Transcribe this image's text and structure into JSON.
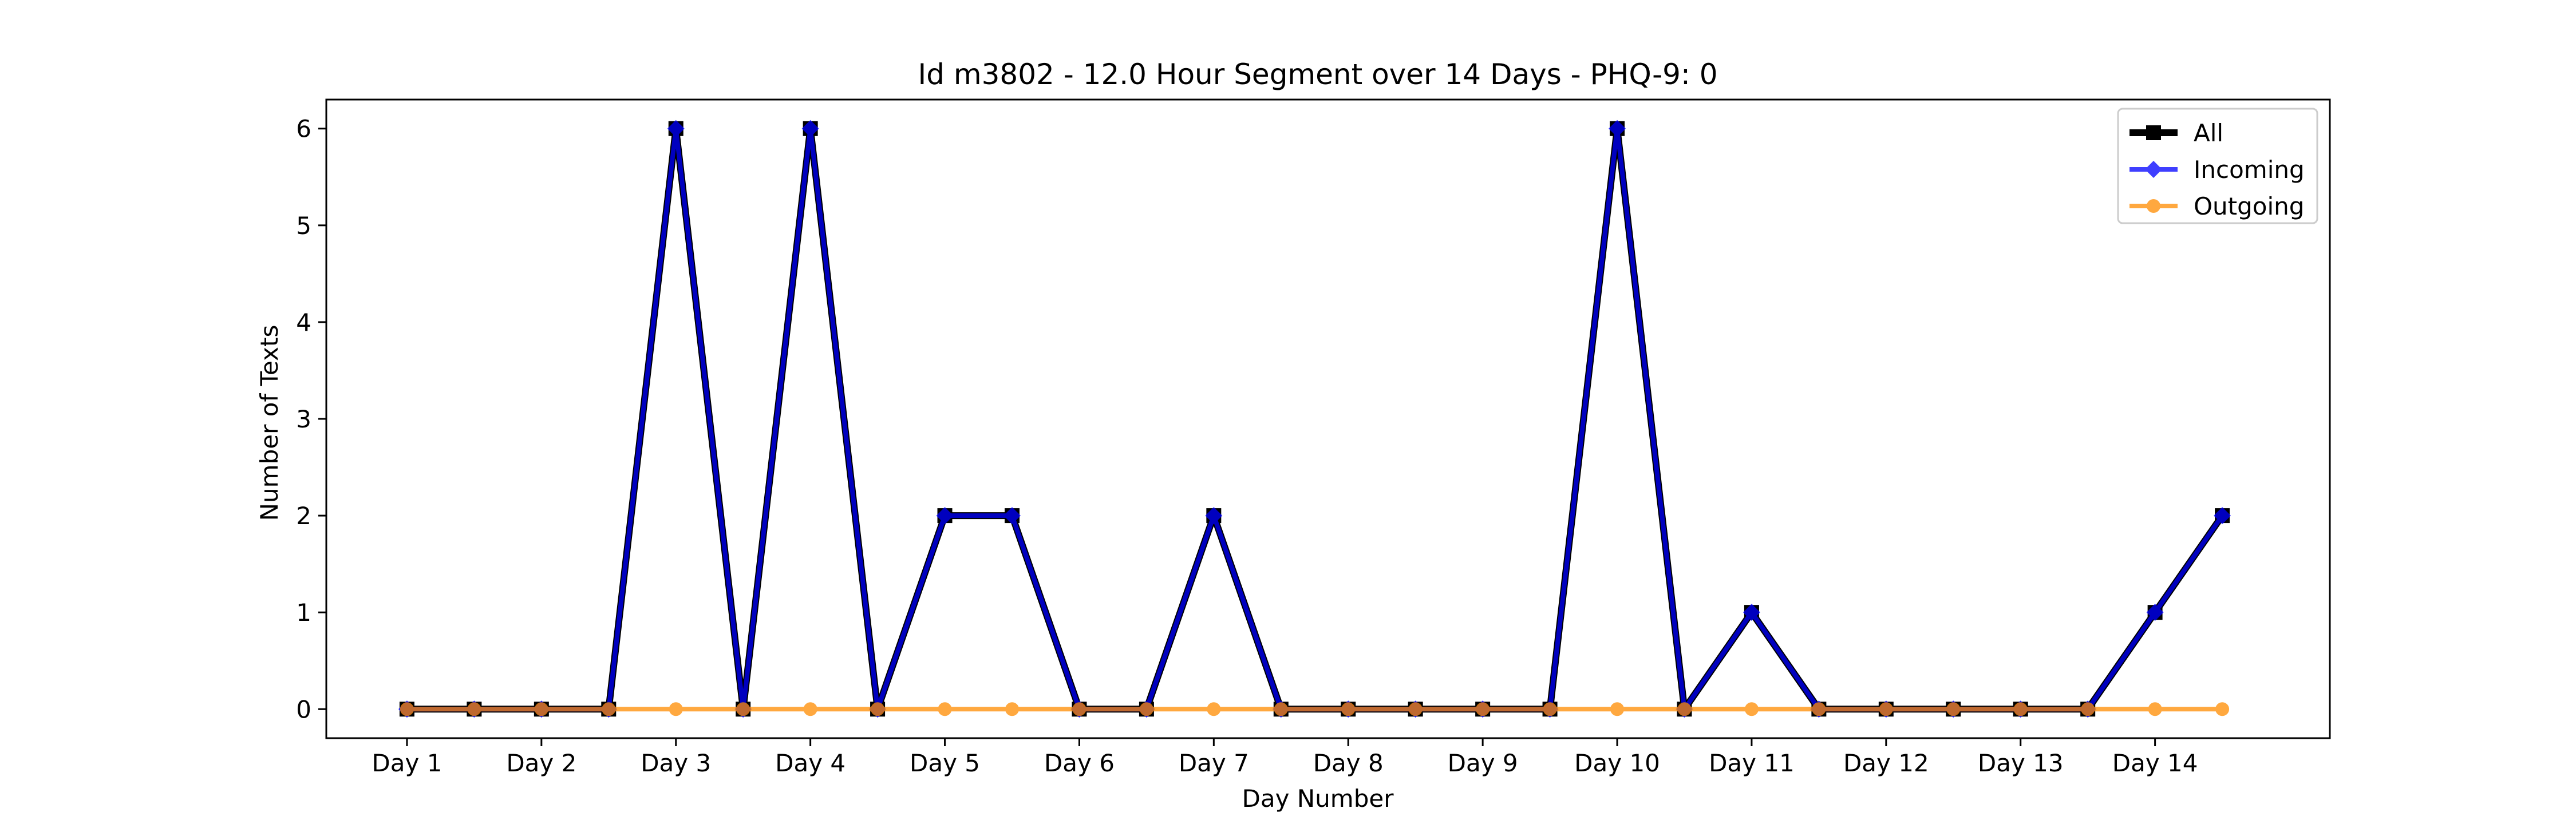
{
  "chart_data": {
    "type": "line",
    "title": "Id m3802 - 12.0 Hour Segment over 14 Days - PHQ-9: 0",
    "xlabel": "Day Number",
    "ylabel": "Number of Texts",
    "x": [
      1,
      1.5,
      2,
      2.5,
      3,
      3.5,
      4,
      4.5,
      5,
      5.5,
      6,
      6.5,
      7,
      7.5,
      8,
      8.5,
      9,
      9.5,
      10,
      10.5,
      11,
      11.5,
      12,
      12.5,
      13,
      13.5,
      14,
      14.5
    ],
    "tick_labels": [
      "Day 1",
      "Day 2",
      "Day 3",
      "Day 4",
      "Day 5",
      "Day 6",
      "Day 7",
      "Day 8",
      "Day 9",
      "Day 10",
      "Day 11",
      "Day 12",
      "Day 13",
      "Day 14"
    ],
    "y_ticks": [
      "0",
      "1",
      "2",
      "3",
      "4",
      "5",
      "6"
    ],
    "xlim": [
      0.4,
      15.3
    ],
    "ylim": [
      -0.3,
      6.3
    ],
    "grid": false,
    "legend_position": "top-right",
    "series": [
      {
        "name": "All",
        "color": "#000000",
        "marker": "square",
        "values": [
          0,
          0,
          0,
          0,
          6,
          0,
          6,
          0,
          2,
          2,
          0,
          0,
          2,
          0,
          0,
          0,
          0,
          0,
          6,
          0,
          1,
          0,
          0,
          0,
          0,
          0,
          1,
          2
        ]
      },
      {
        "name": "Incoming",
        "color": "#0000ff",
        "marker": "diamond",
        "values": [
          0,
          0,
          0,
          0,
          6,
          0,
          6,
          0,
          2,
          2,
          0,
          0,
          2,
          0,
          0,
          0,
          0,
          0,
          6,
          0,
          1,
          0,
          0,
          0,
          0,
          0,
          1,
          2
        ]
      },
      {
        "name": "Outgoing",
        "color": "#ff8c00",
        "marker": "circle",
        "values": [
          0,
          0,
          0,
          0,
          0,
          0,
          0,
          0,
          0,
          0,
          0,
          0,
          0,
          0,
          0,
          0,
          0,
          0,
          0,
          0,
          0,
          0,
          0,
          0,
          0,
          0,
          0,
          0
        ]
      }
    ]
  }
}
